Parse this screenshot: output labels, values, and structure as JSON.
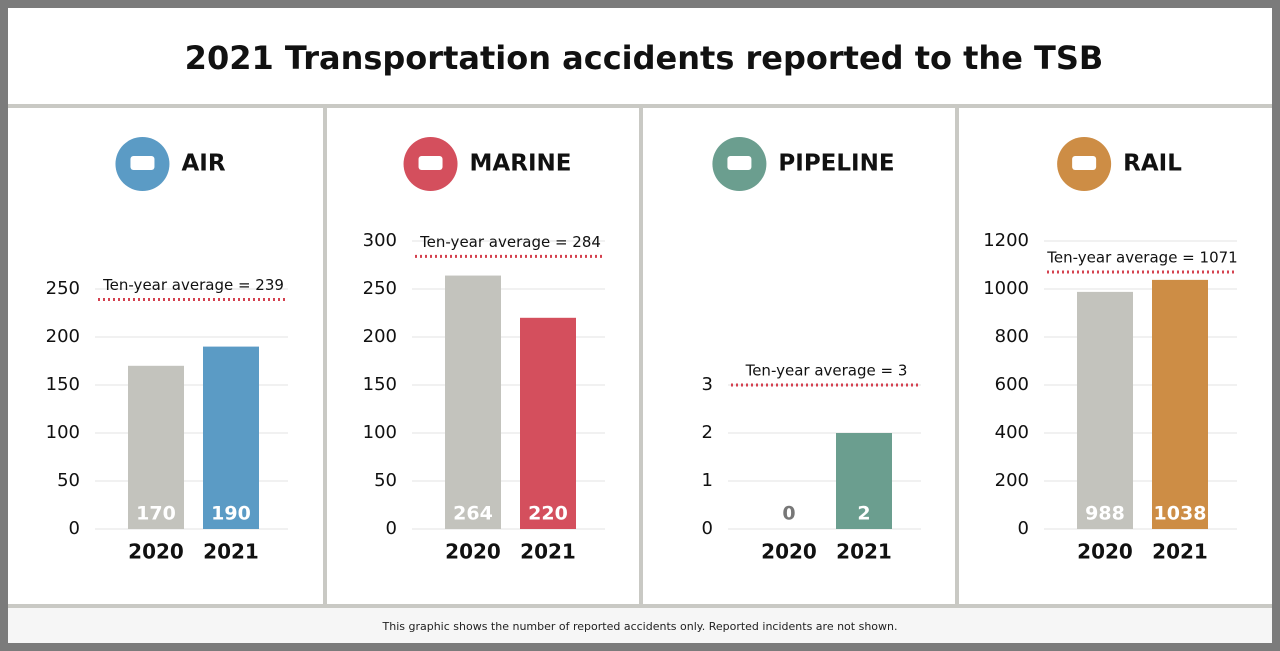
{
  "title": "2021 Transportation accidents reported to the TSB",
  "footnote": "This graphic shows the number of reported accidents only. Reported incidents are not shown.",
  "chart_data": [
    {
      "type": "bar",
      "title": "AIR",
      "categories": [
        "2020",
        "2021"
      ],
      "values": [
        170,
        190
      ],
      "colors": [
        "#c3c3bd",
        "#5b9bc5"
      ],
      "average": 239,
      "average_label": "Ten-year average = 239",
      "ylim": [
        0,
        250
      ],
      "yticks": [
        0,
        50,
        100,
        150,
        200,
        250
      ],
      "grid": true
    },
    {
      "type": "bar",
      "title": "MARINE",
      "categories": [
        "2020",
        "2021"
      ],
      "values": [
        264,
        220
      ],
      "colors": [
        "#c3c3bd",
        "#d44f5d"
      ],
      "average": 284,
      "average_label": "Ten-year average = 284",
      "ylim": [
        0,
        300
      ],
      "yticks": [
        0,
        50,
        100,
        150,
        200,
        250,
        300
      ],
      "grid": true
    },
    {
      "type": "bar",
      "title": "PIPELINE",
      "categories": [
        "2020",
        "2021"
      ],
      "values": [
        0,
        2
      ],
      "colors": [
        "#c3c3bd",
        "#6b9e8f"
      ],
      "average": 3,
      "average_label": "Ten-year average = 3",
      "ylim": [
        0,
        3
      ],
      "yticks": [
        0,
        1,
        2,
        3
      ],
      "grid": true
    },
    {
      "type": "bar",
      "title": "RAIL",
      "categories": [
        "2020",
        "2021"
      ],
      "values": [
        988,
        1038
      ],
      "colors": [
        "#c3c3bd",
        "#cd8d45"
      ],
      "average": 1071,
      "average_label": "Ten-year average = 1071",
      "ylim": [
        0,
        1200
      ],
      "yticks": [
        0,
        200,
        400,
        600,
        800,
        1000,
        1200
      ],
      "grid": true
    }
  ]
}
